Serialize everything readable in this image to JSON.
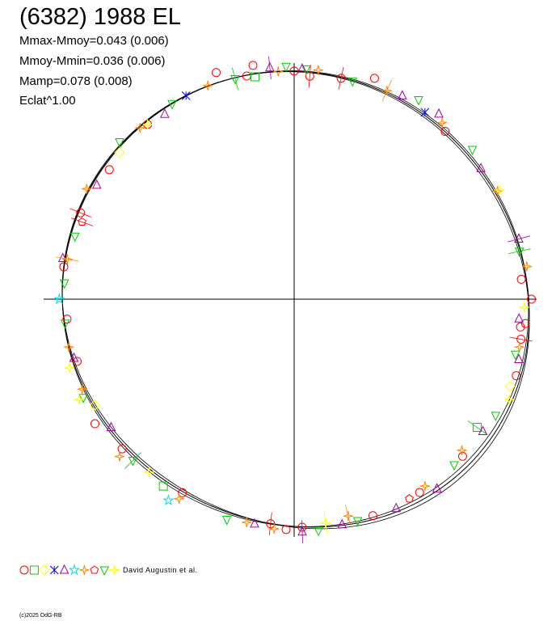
{
  "chart_data": {
    "type": "scatter",
    "title": "(6382) 1988 EL",
    "annotations": [
      "Mmax-Mmoy=0.043 (0.006)",
      "Mmoy-Mmin=0.036 (0.006)",
      "Mamp=0.078 (0.008)",
      "Eclat^1.00"
    ],
    "polar": true,
    "rlim": [
      0,
      1.1
    ],
    "axes": "crosshair",
    "grid": false,
    "legend_placement": "bottom-left",
    "model_curve": {
      "harmonics": [
        {
          "n": 1,
          "a": 0.012,
          "phase": 0.4
        },
        {
          "n": 2,
          "a": 0.028,
          "phase": 1.1
        },
        {
          "n": 3,
          "a": 0.008,
          "phase": 2.3
        }
      ]
    },
    "series": [
      {
        "marker": "circle",
        "color": "#ff0000",
        "points": [
          [
            86,
            0.97
          ],
          [
            90,
            0.99
          ],
          [
            100,
            1.03
          ],
          [
            102,
            0.99
          ],
          [
            109,
            1.04
          ],
          [
            130,
            0.99
          ],
          [
            145,
            0.98
          ],
          [
            158,
            1.0
          ],
          [
            172,
            1.01
          ],
          [
            185,
            0.99
          ],
          [
            196,
            0.98
          ],
          [
            212,
            1.02
          ],
          [
            221,
            0.99
          ],
          [
            240,
            0.97
          ],
          [
            264,
            0.98
          ],
          [
            268,
            1.0
          ],
          [
            272,
            0.99
          ],
          [
            290,
            1.0
          ],
          [
            303,
            1.0
          ],
          [
            317,
            1.0
          ],
          [
            341,
            1.02
          ],
          [
            350,
            1.0
          ],
          [
            353,
            0.99
          ],
          [
            354,
            1.01
          ],
          [
            0,
            1.03
          ],
          [
            5,
            0.99
          ],
          [
            48,
            0.98
          ],
          [
            70,
            1.02
          ],
          [
            78,
            0.98
          ]
        ]
      },
      {
        "marker": "square",
        "color": "#00cc00",
        "points": [
          [
            100,
            0.98
          ],
          [
            235,
            0.99
          ],
          [
            325,
            0.97
          ]
        ]
      },
      {
        "marker": "diamond",
        "color": "#ffff00",
        "points": [
          [
            140,
            0.99
          ],
          [
            208,
            0.98
          ],
          [
            338,
            1.01
          ]
        ]
      },
      {
        "marker": "xstar",
        "color": "#0000ff",
        "points": [
          [
            118,
            1.0
          ],
          [
            55,
            0.99
          ]
        ]
      },
      {
        "marker": "triangle-up",
        "color": "#a000a0",
        "points": [
          [
            88,
            1.0
          ],
          [
            96,
            1.01
          ],
          [
            125,
            0.98
          ],
          [
            150,
            0.99
          ],
          [
            170,
            1.02
          ],
          [
            195,
            0.99
          ],
          [
            215,
            0.97
          ],
          [
            260,
            0.99
          ],
          [
            272,
            1.01
          ],
          [
            282,
            1.0
          ],
          [
            296,
            1.01
          ],
          [
            307,
            1.03
          ],
          [
            325,
            1.0
          ],
          [
            345,
            1.01
          ],
          [
            355,
            0.98
          ],
          [
            15,
            1.01
          ],
          [
            35,
            0.99
          ],
          [
            52,
            1.02
          ],
          [
            62,
            1.0
          ]
        ]
      },
      {
        "marker": "star",
        "color": "#00e0e0",
        "points": [
          [
            180,
            1.02
          ],
          [
            238,
            1.03
          ]
        ]
      },
      {
        "marker": "sparkle",
        "color": "#ff8800",
        "points": [
          [
            84,
            1.0
          ],
          [
            94,
            0.99
          ],
          [
            112,
            1.0
          ],
          [
            132,
            1.0
          ],
          [
            152,
            1.02
          ],
          [
            170,
            1.0
          ],
          [
            192,
            1.0
          ],
          [
            203,
            1.0
          ],
          [
            222,
            1.02
          ],
          [
            240,
            1.0
          ],
          [
            258,
            0.99
          ],
          [
            265,
            1.0
          ],
          [
            284,
            0.97
          ],
          [
            305,
            0.99
          ],
          [
            318,
            0.98
          ],
          [
            348,
            1.0
          ],
          [
            8,
            1.02
          ],
          [
            28,
            1.0
          ],
          [
            50,
            1.0
          ],
          [
            66,
            0.99
          ]
        ]
      },
      {
        "marker": "pentagon",
        "color": "#ff0000",
        "points": [
          [
            160,
            0.98
          ],
          [
            300,
            1.0
          ]
        ]
      },
      {
        "marker": "triangle-down",
        "color": "#00cc00",
        "points": [
          [
            87,
            1.0
          ],
          [
            92,
            1.01
          ],
          [
            105,
            0.99
          ],
          [
            122,
            1.0
          ],
          [
            138,
            1.02
          ],
          [
            164,
            0.99
          ],
          [
            176,
            1.0
          ],
          [
            186,
            1.0
          ],
          [
            205,
            1.01
          ],
          [
            225,
            0.99
          ],
          [
            253,
            1.0
          ],
          [
            276,
            1.01
          ],
          [
            286,
            1.0
          ],
          [
            314,
            1.0
          ],
          [
            330,
            1.01
          ],
          [
            346,
            0.99
          ],
          [
            12,
            1.0
          ],
          [
            40,
            1.01
          ],
          [
            58,
            1.02
          ],
          [
            75,
            0.98
          ]
        ]
      },
      {
        "marker": "sparkle",
        "color": "#ffff00",
        "points": [
          [
            130,
            0.99
          ],
          [
            197,
            1.02
          ],
          [
            205,
            1.03
          ],
          [
            230,
            0.98
          ],
          [
            278,
            0.98
          ],
          [
            335,
            1.03
          ],
          [
            358,
            1.0
          ],
          [
            28,
            1.01
          ]
        ]
      }
    ]
  },
  "footer": {
    "credit": "David Augustin et al.",
    "copyright": "(c)2025 OdG-RB"
  }
}
